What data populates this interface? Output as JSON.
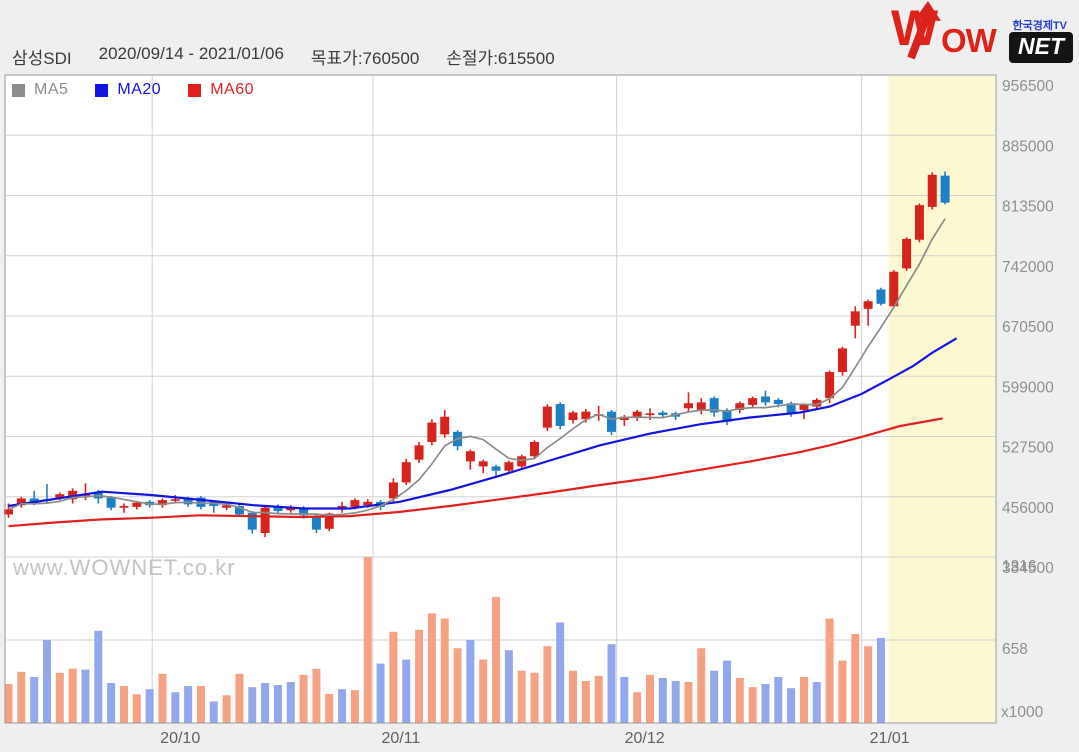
{
  "header": {
    "title": "삼성SDI",
    "period": "2020/09/14 - 2021/01/06",
    "target_label": "목표가:760500",
    "stoploss_label": "손절가:615500"
  },
  "logo": {
    "w": "W",
    "ow": "OW",
    "net": "NET",
    "tagline": "한국경제TV"
  },
  "watermark": "www.WOWNET.co.kr",
  "legend": [
    {
      "label": "MA5",
      "color": "#8c8c8c"
    },
    {
      "label": "MA20",
      "color": "#1414e0"
    },
    {
      "label": "MA60",
      "color": "#e01f1f"
    }
  ],
  "axes": {
    "price_ticks": [
      956500,
      885000,
      813500,
      742000,
      670500,
      599000,
      527500,
      456000,
      384500
    ],
    "volume_ticks": [
      1316,
      658
    ],
    "volume_unit": "x1000",
    "month_ticks": [
      {
        "label": "20/10",
        "i": 11.2
      },
      {
        "label": "20/11",
        "i": 28.4
      },
      {
        "label": "20/12",
        "i": 47.4
      },
      {
        "label": "21/01",
        "i": 66.5
      }
    ]
  },
  "chart_data": {
    "type": "candlestick+volume",
    "price_unit": "KRW (values in thousands)",
    "volume_unit": "shares x1000",
    "price_axis_range": [
      384.5,
      956.5
    ],
    "volume_axis_range": [
      0,
      1316
    ],
    "highlight_start_i": 68.6,
    "colors": {
      "up": "#d6231e",
      "down": "#1f7fc4",
      "vol_up": "#f5a284",
      "vol_down": "#93a7ec",
      "ma5": "#8c8c8c",
      "ma20": "#1414e0",
      "ma60": "#e01f1f",
      "highlight": "#fbf8d2",
      "grid": "#d3d3d3",
      "border": "#9a9a9a"
    },
    "candles_order": [
      "open",
      "close",
      "low",
      "high",
      "candle_color",
      "volume_k",
      "volume_color"
    ],
    "candles": [
      [
        435,
        441,
        431,
        448,
        "r",
        310,
        "r"
      ],
      [
        446,
        454,
        443,
        456,
        "r",
        406,
        "r"
      ],
      [
        454,
        448,
        446,
        463,
        "b",
        365,
        "b"
      ],
      [
        453,
        451,
        448,
        471,
        "b",
        658,
        "b"
      ],
      [
        455,
        459,
        452,
        461,
        "r",
        398,
        "r"
      ],
      [
        453,
        463,
        448,
        466,
        "r",
        431,
        "r"
      ],
      [
        458,
        459,
        452,
        472,
        "r",
        423,
        "b"
      ],
      [
        462,
        454,
        448,
        464,
        "b",
        731,
        "b"
      ],
      [
        455,
        443,
        440,
        457,
        "b",
        317,
        "b"
      ],
      [
        443,
        445,
        437,
        448,
        "r",
        293,
        "r"
      ],
      [
        444,
        449,
        441,
        451,
        "r",
        228,
        "r"
      ],
      [
        450,
        446,
        443,
        452,
        "b",
        268,
        "b"
      ],
      [
        446,
        452,
        443,
        454,
        "r",
        390,
        "r"
      ],
      [
        452,
        453,
        448,
        458,
        "r",
        244,
        "b"
      ],
      [
        454,
        447,
        444,
        456,
        "b",
        293,
        "b"
      ],
      [
        455,
        444,
        441,
        457,
        "b",
        293,
        "r"
      ],
      [
        450,
        445,
        437,
        452,
        "b",
        171,
        "b"
      ],
      [
        443,
        446,
        440,
        449,
        "r",
        220,
        "r"
      ],
      [
        445,
        435,
        432,
        447,
        "b",
        390,
        "r"
      ],
      [
        437,
        417,
        412,
        439,
        "b",
        284,
        "b"
      ],
      [
        413,
        443,
        408,
        444,
        "r",
        317,
        "b"
      ],
      [
        445,
        439,
        436,
        447,
        "b",
        301,
        "b"
      ],
      [
        440,
        444,
        437,
        446,
        "r",
        325,
        "b"
      ],
      [
        443,
        434,
        430,
        445,
        "b",
        382,
        "r"
      ],
      [
        433,
        417,
        413,
        435,
        "b",
        430,
        "r"
      ],
      [
        418,
        436,
        415,
        437,
        "r",
        230,
        "r"
      ],
      [
        443,
        445,
        437,
        450,
        "r",
        268,
        "b"
      ],
      [
        444,
        452,
        441,
        454,
        "r",
        260,
        "r"
      ],
      [
        446,
        450,
        443,
        453,
        "r",
        1316,
        "r"
      ],
      [
        450,
        444,
        440,
        452,
        "b",
        471,
        "b"
      ],
      [
        454,
        473,
        450,
        478,
        "r",
        723,
        "r"
      ],
      [
        473,
        497,
        470,
        501,
        "r",
        503,
        "b"
      ],
      [
        500,
        517,
        496,
        521,
        "r",
        739,
        "r"
      ],
      [
        521,
        544,
        517,
        548,
        "r",
        869,
        "r"
      ],
      [
        530,
        551,
        526,
        559,
        "r",
        828,
        "r"
      ],
      [
        533,
        516,
        511,
        535,
        "b",
        593,
        "r"
      ],
      [
        498,
        510,
        488,
        512,
        "r",
        658,
        "b"
      ],
      [
        492,
        498,
        484,
        500,
        "r",
        503,
        "r"
      ],
      [
        492,
        487,
        480,
        494,
        "b",
        999,
        "r"
      ],
      [
        487,
        497,
        484,
        499,
        "r",
        577,
        "b"
      ],
      [
        492,
        504,
        489,
        506,
        "r",
        414,
        "r"
      ],
      [
        504,
        521,
        501,
        523,
        "r",
        398,
        "r"
      ],
      [
        538,
        563,
        534,
        566,
        "r",
        609,
        "r"
      ],
      [
        566,
        540,
        536,
        568,
        "b",
        796,
        "b"
      ],
      [
        547,
        556,
        543,
        558,
        "r",
        414,
        "r"
      ],
      [
        548,
        557,
        544,
        560,
        "r",
        333,
        "r"
      ],
      [
        552,
        554,
        546,
        564,
        "r",
        374,
        "r"
      ],
      [
        557,
        533,
        529,
        559,
        "b",
        625,
        "b"
      ],
      [
        547,
        551,
        540,
        553,
        "r",
        365,
        "b"
      ],
      [
        550,
        557,
        546,
        559,
        "r",
        244,
        "r"
      ],
      [
        553,
        555,
        547,
        561,
        "r",
        382,
        "r"
      ],
      [
        556,
        553,
        549,
        558,
        "b",
        357,
        "b"
      ],
      [
        555,
        551,
        547,
        557,
        "b",
        333,
        "b"
      ],
      [
        561,
        567,
        556,
        580,
        "r",
        325,
        "r"
      ],
      [
        559,
        568,
        554,
        573,
        "r",
        593,
        "r"
      ],
      [
        573,
        556,
        551,
        575,
        "b",
        414,
        "b"
      ],
      [
        559,
        545,
        541,
        561,
        "b",
        495,
        "b"
      ],
      [
        559,
        567,
        555,
        569,
        "r",
        357,
        "r"
      ],
      [
        565,
        573,
        561,
        575,
        "r",
        284,
        "r"
      ],
      [
        575,
        568,
        564,
        582,
        "b",
        309,
        "b"
      ],
      [
        571,
        566,
        562,
        573,
        "b",
        365,
        "b"
      ],
      [
        567,
        556,
        551,
        569,
        "b",
        276,
        "b"
      ],
      [
        559,
        565,
        548,
        567,
        "r",
        365,
        "r"
      ],
      [
        563,
        571,
        559,
        573,
        "r",
        325,
        "b"
      ],
      [
        573,
        604,
        567,
        606,
        "r",
        828,
        "r"
      ],
      [
        604,
        632,
        600,
        634,
        "r",
        495,
        "r"
      ],
      [
        659,
        676,
        644,
        682,
        "r",
        706,
        "r"
      ],
      [
        679,
        688,
        659,
        690,
        "r",
        609,
        "r"
      ],
      [
        702,
        685,
        683,
        704,
        "b",
        674,
        "b"
      ],
      [
        682,
        723,
        680,
        725,
        "r",
        0,
        "r"
      ],
      [
        727,
        762,
        724,
        764,
        "r",
        0,
        "r"
      ],
      [
        761,
        802,
        758,
        804,
        "r",
        0,
        "r"
      ],
      [
        800,
        838,
        797,
        841,
        "r",
        0,
        "r"
      ],
      [
        837,
        805,
        803,
        842,
        "b",
        0,
        "b"
      ]
    ],
    "ma5_window": 5,
    "ma20_anchors": [
      [
        0,
        445
      ],
      [
        7.3,
        462
      ],
      [
        11.2,
        458
      ],
      [
        15.2,
        452
      ],
      [
        19.1,
        446
      ],
      [
        23,
        442
      ],
      [
        26.6,
        442
      ],
      [
        30.5,
        450
      ],
      [
        34.4,
        464
      ],
      [
        38.3,
        481
      ],
      [
        42.2,
        499
      ],
      [
        46.1,
        517
      ],
      [
        50,
        531
      ],
      [
        53.9,
        542
      ],
      [
        57.8,
        550
      ],
      [
        61.7,
        556
      ],
      [
        64,
        563
      ],
      [
        66.5,
        578
      ],
      [
        68.7,
        596
      ],
      [
        70.5,
        611
      ],
      [
        72,
        627
      ],
      [
        73.9,
        644
      ]
    ],
    "ma60_anchors": [
      [
        0,
        421
      ],
      [
        3.2,
        425
      ],
      [
        7.1,
        429
      ],
      [
        11,
        431
      ],
      [
        14.9,
        434
      ],
      [
        18.8,
        433
      ],
      [
        22.7,
        432
      ],
      [
        26.6,
        433
      ],
      [
        30.5,
        438
      ],
      [
        34.4,
        445
      ],
      [
        38.3,
        453
      ],
      [
        42.2,
        461
      ],
      [
        46.1,
        470
      ],
      [
        50,
        478
      ],
      [
        53.9,
        488
      ],
      [
        57.8,
        498
      ],
      [
        61.7,
        509
      ],
      [
        64,
        517
      ],
      [
        66.5,
        527
      ],
      [
        69.5,
        540
      ],
      [
        72.8,
        549
      ]
    ]
  }
}
